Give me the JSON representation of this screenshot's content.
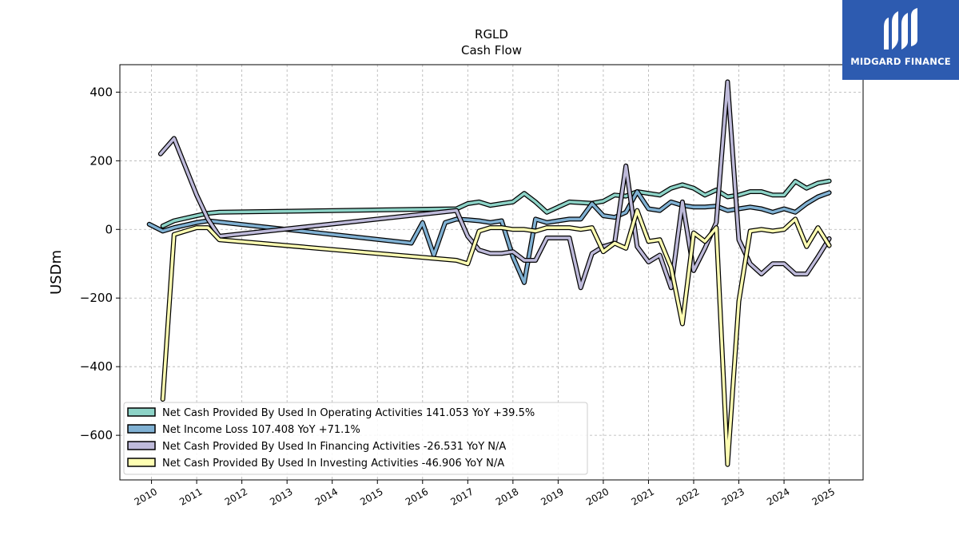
{
  "colors": {
    "operating": "#8dd3c7",
    "net_income": "#80b1d3",
    "financing": "#bebada",
    "investing": "#ffffb3",
    "brand": "#2d5bb0"
  },
  "branding": {
    "logo_text": "MIDGARD FINANCE",
    "logo_icon": "midgard-m-logo"
  },
  "chart_data": {
    "type": "line",
    "title": "RGLD",
    "subtitle": "Cash Flow",
    "ylabel": "USDm",
    "xlabel": "",
    "ylim": [
      -730,
      480
    ],
    "xlim": [
      2009.3,
      2025.75
    ],
    "yticks": [
      400,
      200,
      0,
      -200,
      -400,
      -600
    ],
    "ytick_labels": [
      "400",
      "200",
      "0",
      "−200",
      "−400",
      "−600"
    ],
    "xticks": [
      2010,
      2011,
      2012,
      2013,
      2014,
      2015,
      2016,
      2017,
      2018,
      2019,
      2020,
      2021,
      2022,
      2023,
      2024,
      2025
    ],
    "xtick_labels": [
      "2010",
      "2011",
      "2012",
      "2013",
      "2014",
      "2015",
      "2016",
      "2017",
      "2018",
      "2019",
      "2020",
      "2021",
      "2022",
      "2023",
      "2024",
      "2025"
    ],
    "grid": true,
    "legend_position": "lower-left",
    "series": [
      {
        "name": "Net Cash Provided By Used In Operating Activities",
        "legend": "Net Cash Provided By Used In Operating Activities  141.053 YoY +39.5%",
        "color": "#8dd3c7",
        "x": [
          2010.25,
          2010.5,
          2011.0,
          2011.25,
          2011.5,
          2016.75,
          2017.0,
          2017.25,
          2017.5,
          2017.75,
          2018.0,
          2018.25,
          2018.5,
          2018.75,
          2019.0,
          2019.25,
          2019.5,
          2019.75,
          2020.0,
          2020.25,
          2020.5,
          2020.75,
          2021.0,
          2021.25,
          2021.5,
          2021.75,
          2022.0,
          2022.25,
          2022.5,
          2022.75,
          2023.0,
          2023.25,
          2023.5,
          2023.75,
          2024.0,
          2024.25,
          2024.5,
          2024.75,
          2025.0
        ],
        "values": [
          10,
          25,
          40,
          47,
          50,
          60,
          75,
          80,
          70,
          75,
          80,
          105,
          80,
          50,
          65,
          80,
          78,
          76,
          82,
          100,
          97,
          110,
          105,
          100,
          120,
          130,
          120,
          100,
          115,
          95,
          100,
          110,
          110,
          100,
          100,
          140,
          120,
          135,
          141
        ]
      },
      {
        "name": "Net Income Loss",
        "legend": "Net Income Loss  107.408 YoY +71.1%",
        "color": "#80b1d3",
        "x": [
          2009.95,
          2010.25,
          2010.5,
          2011.0,
          2011.25,
          2015.75,
          2016.0,
          2016.25,
          2016.5,
          2016.75,
          2017.0,
          2017.25,
          2017.5,
          2017.75,
          2018.0,
          2018.25,
          2018.5,
          2018.75,
          2019.0,
          2019.25,
          2019.5,
          2019.75,
          2020.0,
          2020.25,
          2020.5,
          2020.75,
          2021.0,
          2021.25,
          2021.5,
          2021.75,
          2022.0,
          2022.25,
          2022.5,
          2022.75,
          2023.0,
          2023.25,
          2023.5,
          2023.75,
          2024.0,
          2024.25,
          2024.5,
          2024.75,
          2025.0
        ],
        "values": [
          15,
          -5,
          5,
          20,
          25,
          -40,
          20,
          -75,
          20,
          30,
          28,
          25,
          20,
          25,
          -80,
          -155,
          30,
          20,
          25,
          30,
          30,
          75,
          40,
          35,
          50,
          110,
          60,
          55,
          80,
          70,
          65,
          65,
          68,
          55,
          60,
          65,
          60,
          50,
          60,
          50,
          75,
          95,
          107
        ]
      },
      {
        "name": "Net Cash Provided By Used In Financing Activities",
        "legend": "Net Cash Provided By Used In Financing Activities  -26.531 YoY N/A",
        "color": "#bebada",
        "x": [
          2010.2,
          2010.5,
          2011.0,
          2011.25,
          2011.5,
          2016.75,
          2017.0,
          2017.25,
          2017.5,
          2017.75,
          2018.0,
          2018.25,
          2018.5,
          2018.75,
          2019.0,
          2019.25,
          2019.5,
          2019.75,
          2020.0,
          2020.25,
          2020.5,
          2020.75,
          2021.0,
          2021.25,
          2021.5,
          2021.75,
          2022.0,
          2022.25,
          2022.5,
          2022.75,
          2023.0,
          2023.25,
          2023.5,
          2023.75,
          2024.0,
          2024.25,
          2024.5,
          2024.75,
          2025.0
        ],
        "values": [
          220,
          265,
          100,
          30,
          -20,
          55,
          -20,
          -60,
          -70,
          -70,
          -65,
          -90,
          -90,
          -25,
          -25,
          -25,
          -170,
          -70,
          -50,
          -40,
          185,
          -50,
          -95,
          -75,
          -170,
          80,
          -120,
          -55,
          20,
          430,
          -30,
          -100,
          -130,
          -100,
          -100,
          -130,
          -130,
          -80,
          -27
        ]
      },
      {
        "name": "Net Cash Provided By Used In Investing Activities",
        "legend": "Net Cash Provided By Used In Investing Activities  -46.906 YoY N/A",
        "color": "#ffffb3",
        "x": [
          2010.25,
          2010.5,
          2011.0,
          2011.25,
          2011.5,
          2016.75,
          2017.0,
          2017.25,
          2017.5,
          2017.75,
          2018.0,
          2018.25,
          2018.5,
          2018.75,
          2019.0,
          2019.25,
          2019.5,
          2019.75,
          2020.0,
          2020.25,
          2020.5,
          2020.75,
          2021.0,
          2021.25,
          2021.5,
          2021.75,
          2022.0,
          2022.25,
          2022.5,
          2022.75,
          2023.0,
          2023.25,
          2023.5,
          2023.75,
          2024.0,
          2024.25,
          2024.5,
          2024.75,
          2025.0
        ],
        "values": [
          -495,
          -15,
          5,
          5,
          -30,
          -90,
          -100,
          -5,
          5,
          5,
          0,
          0,
          -5,
          5,
          5,
          5,
          0,
          5,
          -65,
          -40,
          -55,
          55,
          -35,
          -30,
          -110,
          -275,
          -10,
          -35,
          5,
          -685,
          -210,
          -5,
          0,
          -5,
          0,
          30,
          -50,
          5,
          -47
        ]
      }
    ]
  }
}
